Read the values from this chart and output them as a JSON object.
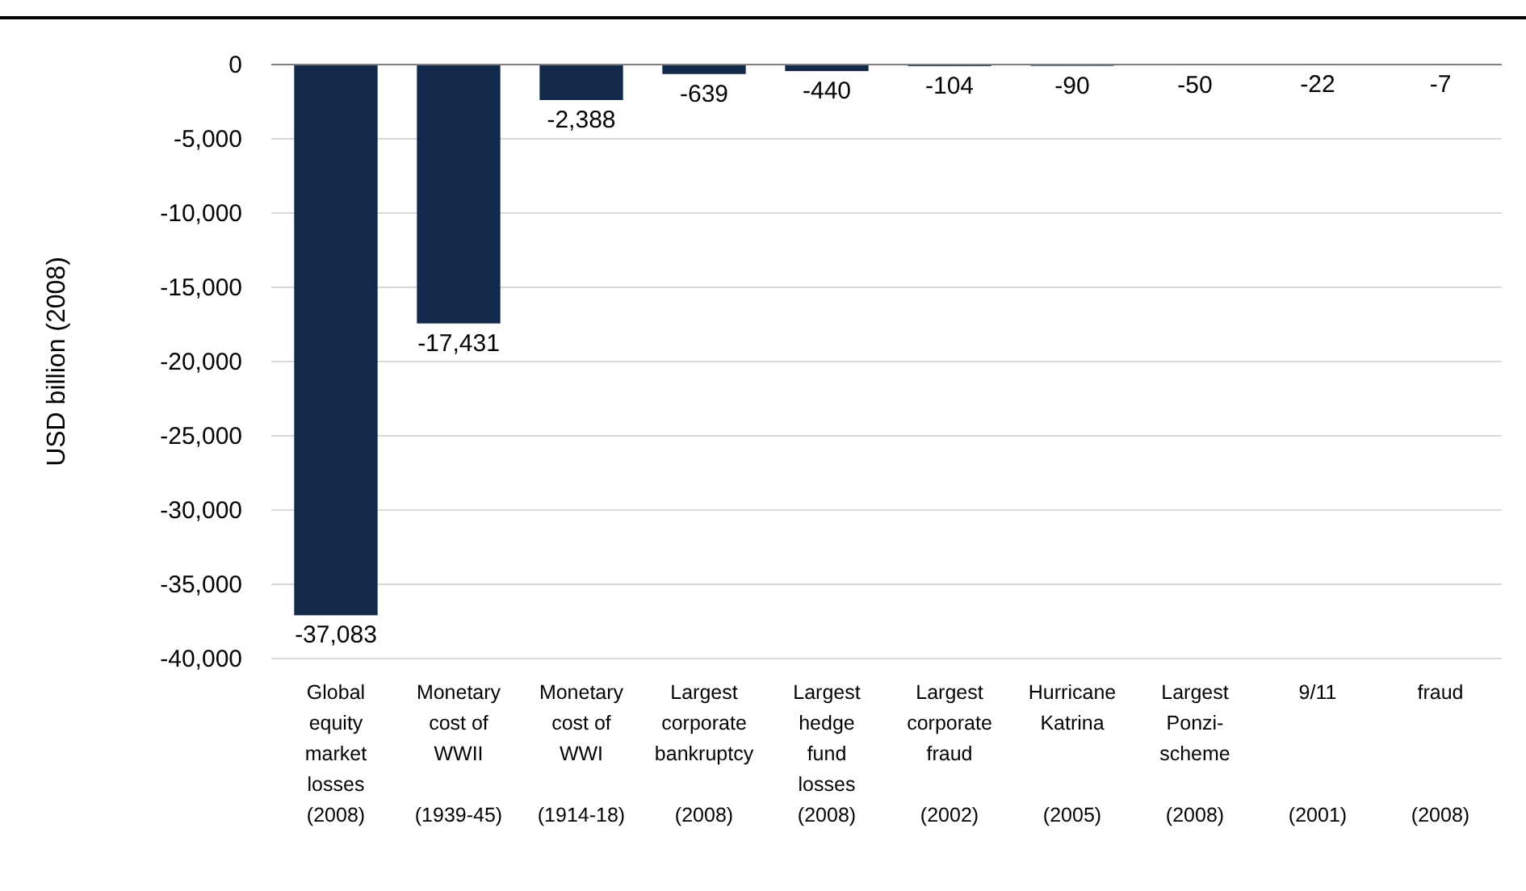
{
  "chart_data": {
    "type": "bar",
    "ylabel": "USD billion (2008)",
    "categories": [
      "Global\nequity\nmarket\nlosses\n(2008)",
      "Monetary\ncost of\nWWII\n\n(1939-45)",
      "Monetary\ncost of\nWWI\n\n(1914-18)",
      "Largest\ncorporate\nbankruptcy\n\n(2008)",
      "Largest\nhedge\nfund\nlosses\n(2008)",
      "Largest\ncorporate\nfraud\n\n(2002)",
      "Hurricane\nKatrina\n\n\n(2005)",
      "Largest\nPonzi-\nscheme\n\n(2008)",
      "9/11\n\n\n\n(2001)",
      "fraud\n\n\n\n(2008)"
    ],
    "values": [
      -37083,
      -17431,
      -2388,
      -639,
      -440,
      -104,
      -90,
      -50,
      -22,
      -7
    ],
    "value_labels": [
      "-37,083",
      "-17,431",
      "-2,388",
      "-639",
      "-440",
      "-104",
      "-90",
      "-50",
      "-22",
      "-7"
    ],
    "color": "#13294b",
    "grid": "y",
    "ylim": [
      -40000,
      0
    ],
    "yticks": [
      {
        "value": -40000,
        "label": "-40,000"
      },
      {
        "value": -35000,
        "label": "-35,000"
      },
      {
        "value": -30000,
        "label": "-30,000"
      },
      {
        "value": -25000,
        "label": "-25,000"
      },
      {
        "value": -20000,
        "label": "-20,000"
      },
      {
        "value": -15000,
        "label": "-15,000"
      },
      {
        "value": -10000,
        "label": "-10,000"
      },
      {
        "value": -5000,
        "label": "-5,000"
      },
      0
    ]
  }
}
